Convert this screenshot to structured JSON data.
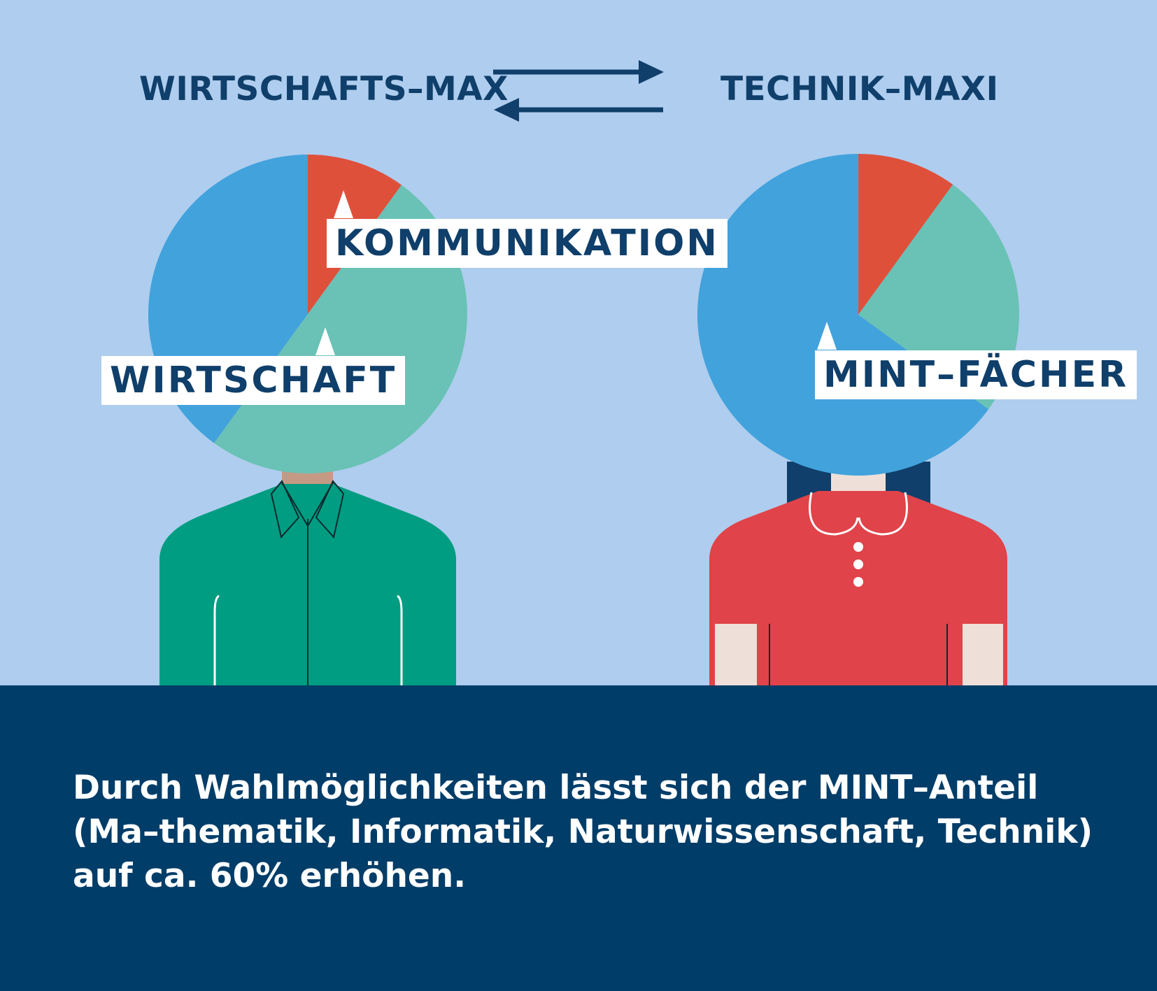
{
  "header": {
    "left_title": "WIRTSCHAFTS–MAX",
    "right_title": "TECHNIK–MAXI"
  },
  "labels": {
    "kommunikation": "KOMMUNIKATION",
    "wirtschaft": "WIRTSCHAFT",
    "mint": "MINT–FÄCHER"
  },
  "footer": {
    "text": "Durch Wahlmöglichkeiten lässt sich der MINT–Anteil (Ma–thematik, Informatik, Naturwissenschaft, Technik) auf ca. 60% erhöhen."
  },
  "colors": {
    "background": "#afcdee",
    "navy": "#003d68",
    "kommunikation": "#df503b",
    "wirtschaft": "#69c2b5",
    "mint": "#42a2dc",
    "shirt_left": "#009d82",
    "shirt_right": "#e04349"
  },
  "chart_data": [
    {
      "type": "pie",
      "title": "WIRTSCHAFTS–MAX",
      "categories": [
        "KOMMUNIKATION",
        "WIRTSCHAFT",
        ""
      ],
      "values": [
        10,
        50,
        40
      ],
      "colors": [
        "#df503b",
        "#69c2b5",
        "#42a2dc"
      ]
    },
    {
      "type": "pie",
      "title": "TECHNIK–MAXI",
      "categories": [
        "",
        "",
        "MINT–FÄCHER"
      ],
      "values": [
        10,
        25,
        65
      ],
      "colors": [
        "#df503b",
        "#69c2b5",
        "#42a2dc"
      ]
    }
  ]
}
